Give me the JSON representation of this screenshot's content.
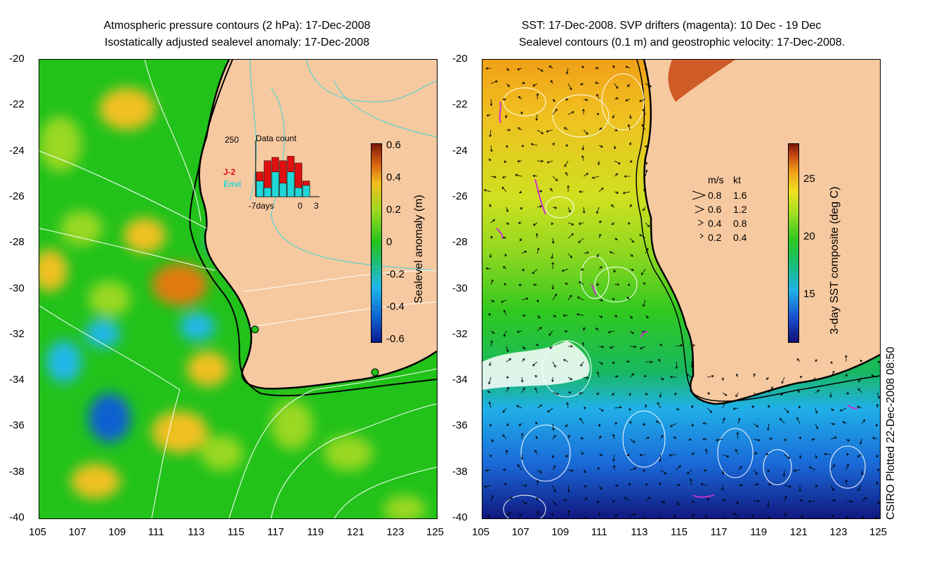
{
  "left_panel": {
    "title_line1": "Atmospheric pressure contours (2 hPa): 17-Dec-2008",
    "title_line2": "Isostatically adjusted sealevel anomaly: 17-Dec-2008",
    "colorbar_label": "Sealevel anomaly (m)",
    "colorbar_ticks": [
      "0.6",
      "0.4",
      "0.2",
      "0",
      "-0.2",
      "-0.4",
      "-0.6"
    ],
    "inset": {
      "title": "Data count",
      "ymax_label": "250",
      "series1": "J-2",
      "series2": "Envi",
      "x_left": "-7days",
      "x_mid": "0",
      "x_right": "3",
      "series1_color": "#e01010",
      "series2_color": "#20d8d8",
      "bar_totals": [
        110,
        160,
        175,
        160,
        180,
        150,
        70
      ],
      "bar_envi": [
        70,
        40,
        110,
        60,
        110,
        40,
        50
      ]
    }
  },
  "right_panel": {
    "title_line1": "SST: 17-Dec-2008. SVP drifters (magenta): 10 Dec - 19 Dec",
    "title_line2": "Sealevel contours (0.1 m) and geostrophic velocity: 17-Dec-2008.",
    "colorbar_label": "3-day SST composite (deg C)",
    "colorbar_ticks": [
      "25",
      "20",
      "15"
    ],
    "legend": {
      "header_ms": "m/s",
      "header_kt": "kt",
      "rows": [
        {
          "ms": "0.8",
          "kt": "1.6"
        },
        {
          "ms": "0.6",
          "kt": "1.2"
        },
        {
          "ms": "0.4",
          "kt": "0.8"
        },
        {
          "ms": "0.2",
          "kt": "0.4"
        }
      ]
    }
  },
  "axes": {
    "lat_ticks": [
      "-20",
      "-22",
      "-24",
      "-26",
      "-28",
      "-30",
      "-32",
      "-34",
      "-36",
      "-38",
      "-40"
    ],
    "lon_ticks": [
      "105",
      "107",
      "109",
      "111",
      "113",
      "115",
      "117",
      "119",
      "121",
      "123",
      "125"
    ]
  },
  "footer": "CSIRO Plotted 22-Dec-2008 08:50",
  "colors": {
    "land": "#f7c9a0",
    "sea_mid": "#22c21b",
    "contour": "#ffffff",
    "land_contour": "#3fd6d6",
    "drifter": "#cc33cc"
  }
}
